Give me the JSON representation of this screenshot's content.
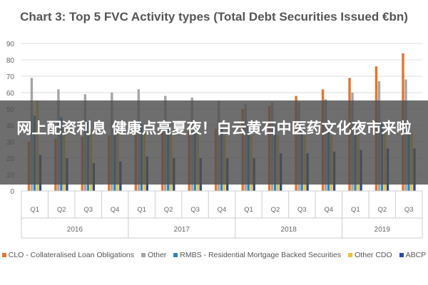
{
  "chart_data": {
    "type": "bar",
    "title": "Chart 3: Top 5 FVC Activity types (Total Debt Securities Issued €bn)",
    "ylim": [
      0,
      90
    ],
    "yticks": [
      0,
      10,
      20,
      30,
      40,
      50,
      60,
      70,
      80,
      90
    ],
    "grid": true,
    "legend_position": "bottom",
    "categories": [
      "Q1",
      "Q2",
      "Q3",
      "Q4",
      "Q1",
      "Q2",
      "Q3",
      "Q4",
      "Q1",
      "Q2",
      "Q3",
      "Q4",
      "Q1",
      "Q2",
      "Q3"
    ],
    "groups": [
      {
        "label": "2016",
        "count": 4
      },
      {
        "label": "2017",
        "count": 4
      },
      {
        "label": "2018",
        "count": 4
      },
      {
        "label": "2019",
        "count": 3
      }
    ],
    "series": [
      {
        "name": "CLO - Collateralised Loan Obligations",
        "color": "#e8732c",
        "values": [
          30,
          32,
          33,
          34,
          37,
          36,
          37,
          38,
          50,
          52,
          58,
          62,
          69,
          76,
          84
        ]
      },
      {
        "name": "Other",
        "color": "#a5a5a5",
        "values": [
          69,
          62,
          59,
          60,
          62,
          58,
          57,
          55,
          53,
          54,
          54,
          56,
          60,
          67,
          68
        ]
      },
      {
        "name": "RMBS - Residential Mortgage Backed Securities",
        "color": "#2e86c1",
        "values": [
          46,
          45,
          42,
          41,
          41,
          40,
          39,
          38,
          40,
          40,
          40,
          39,
          41,
          41,
          41
        ]
      },
      {
        "name": "Other CDO",
        "color": "#f2c12e",
        "values": [
          55,
          40,
          38,
          37,
          36,
          35,
          35,
          34,
          34,
          34,
          34,
          34,
          35,
          35,
          36
        ]
      },
      {
        "name": "ABCP",
        "color": "#2a4b9b",
        "values": [
          22,
          20,
          17,
          18,
          21,
          20,
          20,
          20,
          20,
          23,
          23,
          24,
          25,
          26,
          26
        ]
      }
    ]
  },
  "overlay": {
    "text": "网上配资利息 健康点亮夏夜！白云黄石中医药文化夜市来啦"
  }
}
